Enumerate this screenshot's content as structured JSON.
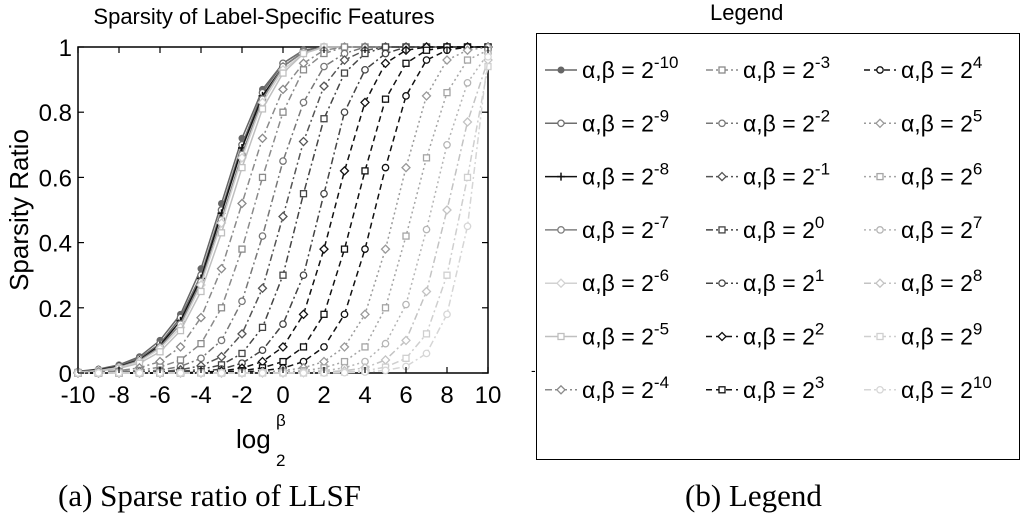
{
  "chart_data": {
    "type": "line",
    "title": "Sparsity of Label-Specific Features",
    "xlabel": "log",
    "xlabel_sub": "2",
    "xlabel_sup": "β",
    "ylabel": "Sparsity Ratio",
    "xlim": [
      -10,
      10
    ],
    "ylim": [
      0,
      1
    ],
    "x_ticks": [
      "-10",
      "-8",
      "-6",
      "-4",
      "-2",
      "0",
      "2",
      "4",
      "6",
      "8",
      "10"
    ],
    "y_ticks": [
      "0",
      "0.2",
      "0.4",
      "0.6",
      "0.8",
      "1"
    ],
    "grid": false,
    "x": [
      -10,
      -9,
      -8,
      -7,
      -6,
      -5,
      -4,
      -3,
      -2,
      -1,
      0,
      1,
      2,
      3,
      4,
      5,
      6,
      7,
      8,
      9,
      10
    ],
    "series": [
      {
        "name": "α,β = 2^-10",
        "exp": "-10",
        "color": "#666666",
        "marker": "dot",
        "dash": "solid",
        "values": [
          0.005,
          0.012,
          0.025,
          0.05,
          0.1,
          0.18,
          0.32,
          0.52,
          0.72,
          0.87,
          0.95,
          0.99,
          1,
          1,
          1,
          1,
          1,
          1,
          1,
          1,
          1
        ]
      },
      {
        "name": "α,β = 2^-9",
        "exp": "-9",
        "color": "#6e6e6e",
        "marker": "circle",
        "dash": "solid",
        "values": [
          0.004,
          0.01,
          0.022,
          0.045,
          0.09,
          0.17,
          0.3,
          0.5,
          0.7,
          0.86,
          0.95,
          0.99,
          1,
          1,
          1,
          1,
          1,
          1,
          1,
          1,
          1
        ]
      },
      {
        "name": "α,β = 2^-8",
        "exp": "-8",
        "color": "#111111",
        "marker": "plus",
        "dash": "solid",
        "values": [
          0.004,
          0.01,
          0.02,
          0.04,
          0.085,
          0.16,
          0.29,
          0.49,
          0.69,
          0.85,
          0.94,
          0.985,
          1,
          1,
          1,
          1,
          1,
          1,
          1,
          1,
          1
        ]
      },
      {
        "name": "α,β = 2^-7",
        "exp": "-7",
        "color": "#808080",
        "marker": "circle",
        "dash": "solid",
        "values": [
          0.003,
          0.008,
          0.018,
          0.038,
          0.08,
          0.15,
          0.28,
          0.47,
          0.67,
          0.84,
          0.94,
          0.985,
          1,
          1,
          1,
          1,
          1,
          1,
          1,
          1,
          1
        ]
      },
      {
        "name": "α,β = 2^-6",
        "exp": "-6",
        "color": "#d2d2d2",
        "marker": "diamond",
        "dash": "solid",
        "values": [
          0.003,
          0.007,
          0.016,
          0.035,
          0.075,
          0.14,
          0.27,
          0.46,
          0.66,
          0.83,
          0.93,
          0.98,
          1,
          1,
          1,
          1,
          1,
          1,
          1,
          1,
          1
        ]
      },
      {
        "name": "α,β = 2^-5",
        "exp": "-5",
        "color": "#bfbfbf",
        "marker": "square",
        "dash": "solid",
        "values": [
          0.002,
          0.006,
          0.014,
          0.03,
          0.065,
          0.13,
          0.25,
          0.43,
          0.63,
          0.81,
          0.92,
          0.98,
          1,
          1,
          1,
          1,
          1,
          1,
          1,
          1,
          1
        ]
      },
      {
        "name": "α,β = 2^-4",
        "exp": "-4",
        "color": "#8a8a8a",
        "marker": "diamond",
        "dash": "dashdot",
        "values": [
          0.001,
          0.003,
          0.007,
          0.016,
          0.035,
          0.08,
          0.17,
          0.32,
          0.52,
          0.72,
          0.87,
          0.95,
          0.99,
          1,
          1,
          1,
          1,
          1,
          1,
          1,
          1
        ]
      },
      {
        "name": "α,β = 2^-3",
        "exp": "-3",
        "color": "#8a8a8a",
        "marker": "square",
        "dash": "dashdot",
        "values": [
          0,
          0.002,
          0.004,
          0.008,
          0.018,
          0.04,
          0.09,
          0.2,
          0.38,
          0.6,
          0.8,
          0.93,
          0.98,
          1,
          1,
          1,
          1,
          1,
          1,
          1,
          1
        ]
      },
      {
        "name": "α,β = 2^-2",
        "exp": "-2",
        "color": "#777777",
        "marker": "circle",
        "dash": "dashdot",
        "values": [
          0,
          0.001,
          0.002,
          0.004,
          0.009,
          0.02,
          0.045,
          0.1,
          0.22,
          0.42,
          0.65,
          0.83,
          0.94,
          0.98,
          1,
          1,
          1,
          1,
          1,
          1,
          1
        ]
      },
      {
        "name": "α,β = 2^-1",
        "exp": "-1",
        "color": "#555555",
        "marker": "diamond",
        "dash": "dashdot",
        "values": [
          0,
          0,
          0.001,
          0.002,
          0.004,
          0.01,
          0.022,
          0.05,
          0.12,
          0.26,
          0.48,
          0.71,
          0.88,
          0.96,
          0.99,
          1,
          1,
          1,
          1,
          1,
          1
        ]
      },
      {
        "name": "α,β = 2^0",
        "exp": "0",
        "color": "#444444",
        "marker": "square",
        "dash": "dashdot",
        "values": [
          0,
          0,
          0,
          0.001,
          0.002,
          0.005,
          0.011,
          0.025,
          0.06,
          0.14,
          0.3,
          0.55,
          0.78,
          0.92,
          0.98,
          1,
          1,
          1,
          1,
          1,
          1
        ]
      },
      {
        "name": "α,β = 2^1",
        "exp": "1",
        "color": "#444444",
        "marker": "circle",
        "dash": "dashdot",
        "values": [
          0,
          0,
          0,
          0,
          0.001,
          0.002,
          0.005,
          0.012,
          0.03,
          0.07,
          0.15,
          0.3,
          0.55,
          0.8,
          0.93,
          0.98,
          1,
          1,
          1,
          1,
          1
        ]
      },
      {
        "name": "α,β = 2^2",
        "exp": "2",
        "color": "#111111",
        "marker": "diamond",
        "dash": "dashed",
        "values": [
          0,
          0,
          0,
          0,
          0,
          0.001,
          0.002,
          0.006,
          0.015,
          0.035,
          0.08,
          0.18,
          0.38,
          0.62,
          0.83,
          0.95,
          0.99,
          1,
          1,
          1,
          1
        ]
      },
      {
        "name": "α,β = 2^3",
        "exp": "3",
        "color": "#111111",
        "marker": "square",
        "dash": "dashed",
        "values": [
          0,
          0,
          0,
          0,
          0,
          0,
          0.001,
          0.003,
          0.007,
          0.016,
          0.035,
          0.08,
          0.18,
          0.38,
          0.62,
          0.84,
          0.95,
          0.99,
          1,
          1,
          1
        ]
      },
      {
        "name": "α,β = 2^4",
        "exp": "4",
        "color": "#111111",
        "marker": "circle",
        "dash": "dashed",
        "values": [
          0,
          0,
          0,
          0,
          0,
          0,
          0,
          0.001,
          0.003,
          0.007,
          0.015,
          0.035,
          0.08,
          0.18,
          0.38,
          0.63,
          0.85,
          0.96,
          0.99,
          1,
          1
        ]
      },
      {
        "name": "α,β = 2^5",
        "exp": "5",
        "color": "#9a9a9a",
        "marker": "diamond",
        "dash": "dotted",
        "values": [
          0,
          0,
          0,
          0,
          0,
          0,
          0,
          0,
          0.001,
          0.003,
          0.007,
          0.016,
          0.035,
          0.08,
          0.18,
          0.38,
          0.63,
          0.85,
          0.96,
          0.99,
          1
        ]
      },
      {
        "name": "α,β = 2^6",
        "exp": "6",
        "color": "#a5a5a5",
        "marker": "square",
        "dash": "dotted",
        "values": [
          0,
          0,
          0,
          0,
          0,
          0,
          0,
          0,
          0,
          0.001,
          0.003,
          0.007,
          0.016,
          0.035,
          0.08,
          0.2,
          0.42,
          0.66,
          0.86,
          0.96,
          0.99
        ]
      },
      {
        "name": "α,β = 2^7",
        "exp": "7",
        "color": "#b5b5b5",
        "marker": "circle",
        "dash": "dotted",
        "values": [
          0,
          0,
          0,
          0,
          0,
          0,
          0,
          0,
          0,
          0,
          0.001,
          0.003,
          0.007,
          0.016,
          0.035,
          0.09,
          0.21,
          0.44,
          0.7,
          0.89,
          0.98
        ]
      },
      {
        "name": "α,β = 2^8",
        "exp": "8",
        "color": "#c3c3c3",
        "marker": "diamond",
        "dash": "dashdot",
        "values": [
          0,
          0,
          0,
          0,
          0,
          0,
          0,
          0,
          0,
          0,
          0,
          0.001,
          0.003,
          0.007,
          0.016,
          0.04,
          0.1,
          0.25,
          0.5,
          0.77,
          0.96
        ]
      },
      {
        "name": "α,β = 2^9",
        "exp": "9",
        "color": "#cfcfcf",
        "marker": "square",
        "dash": "dashdot",
        "values": [
          0,
          0,
          0,
          0,
          0,
          0,
          0,
          0,
          0,
          0,
          0,
          0,
          0.001,
          0.003,
          0.007,
          0.018,
          0.045,
          0.12,
          0.3,
          0.6,
          0.94
        ]
      },
      {
        "name": "α,β = 2^10",
        "exp": "10",
        "color": "#d6d6d6",
        "marker": "circle",
        "dash": "dashdot",
        "values": [
          0,
          0,
          0,
          0,
          0,
          0,
          0,
          0,
          0,
          0,
          0,
          0,
          0,
          0.001,
          0.003,
          0.008,
          0.02,
          0.06,
          0.18,
          0.45,
          0.97
        ]
      }
    ]
  },
  "legend": {
    "title": "Legend",
    "prefix": "α,β = 2"
  },
  "captions": {
    "a": "(a) Sparse ratio of LLSF",
    "b": "(b) Legend"
  }
}
